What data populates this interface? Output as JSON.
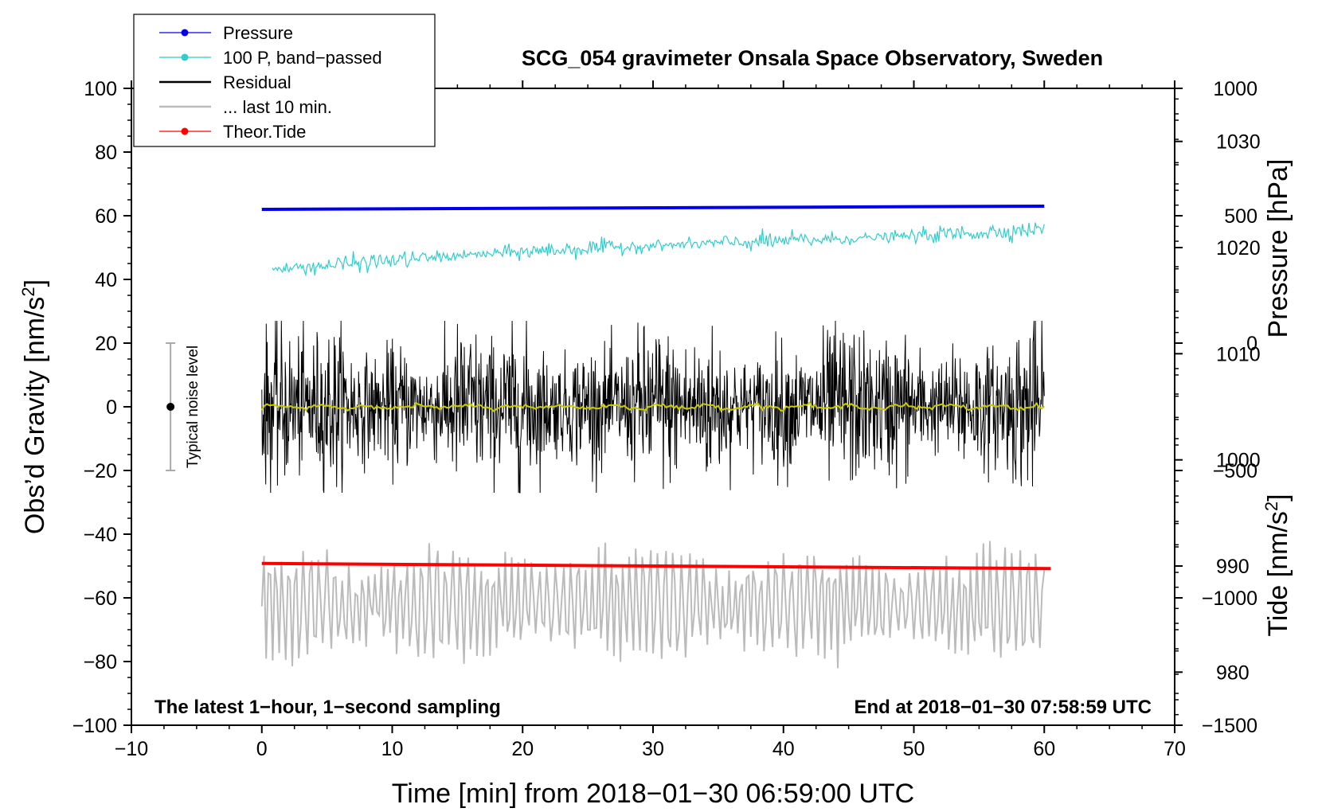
{
  "chart_data": {
    "type": "line",
    "title": "SCG_054 gravimeter Onsala Space Observatory, Sweden",
    "xlabel": "Time [min] from 2018−01−30 06:59:00 UTC",
    "ylabel_left": "Obs’d Gravity [nm/s",
    "ylabel_left_sup": "2",
    "ylabel_left_end": "]",
    "ylabel_right_pressure": "Pressure [hPa]",
    "ylabel_right_tide": "Tide [nm/s",
    "ylabel_right_tide_sup": "2",
    "ylabel_right_tide_end": "]",
    "xlim": [
      -10,
      70
    ],
    "ylim_left": [
      -100,
      100
    ],
    "pressure_axis": {
      "range_hPa": [
        975,
        1035
      ],
      "ticks": [
        980,
        990,
        1000,
        1010,
        1020,
        1030
      ]
    },
    "tide_axis": {
      "range_nm_s2": [
        -1500,
        1000
      ],
      "ticks": [
        1000,
        500,
        0,
        -500,
        -1000,
        -1500
      ]
    },
    "x_ticks": [
      -10,
      0,
      10,
      20,
      30,
      40,
      50,
      60,
      70
    ],
    "x_tick_labels": [
      "−10",
      "0",
      "10",
      "20",
      "30",
      "40",
      "50",
      "60",
      "70"
    ],
    "y_ticks": [
      100,
      80,
      60,
      40,
      20,
      0,
      -20,
      -40,
      -60,
      -80,
      -100
    ],
    "y_tick_labels": [
      "100",
      "80",
      "60",
      "40",
      "20",
      "0",
      "−20",
      "−40",
      "−60",
      "−80",
      "−100"
    ],
    "pressure_tick_labels": [
      "980",
      "990",
      "1000",
      "1010",
      "1020",
      "1030"
    ],
    "tide_tick_labels": [
      "1000",
      "500",
      "0",
      "−500",
      "−1000",
      "−1500"
    ],
    "series": [
      {
        "name": "Pressure",
        "color": "#0000ee",
        "style": "line-dot",
        "x_range": [
          0,
          60
        ],
        "approx_left_values": [
          62.0,
          63.0
        ]
      },
      {
        "name": "100 P, band−passed",
        "color": "#33cccc",
        "style": "line-dot",
        "x_range": [
          0.8,
          60
        ],
        "approx_left_values": [
          43,
          57
        ]
      },
      {
        "name": "Residual",
        "color": "#000000",
        "style": "line",
        "x_range": [
          0,
          60
        ],
        "center": 0,
        "amplitude": 27
      },
      {
        "name": "... last 10 min.",
        "color": "#bbbbbb",
        "style": "line",
        "x_range": [
          0,
          60
        ],
        "center": -62,
        "amplitude": 17
      },
      {
        "name": "Theor.Tide",
        "color": "#ff0000",
        "style": "line-dot",
        "x_range": [
          0,
          60.5
        ],
        "approx_left_values": [
          -49.2,
          -50.8
        ]
      }
    ],
    "smoothed_residual": {
      "color": "#cccc00",
      "center": 0
    },
    "noise_bar": {
      "label": "Typical noise level",
      "x": -7,
      "center": 0,
      "low": -20,
      "high": 20
    },
    "annotations": {
      "left": "The latest 1−hour, 1−second sampling",
      "right": "End at 2018−01−30 07:58:59 UTC"
    },
    "legend_position": "top-left"
  }
}
